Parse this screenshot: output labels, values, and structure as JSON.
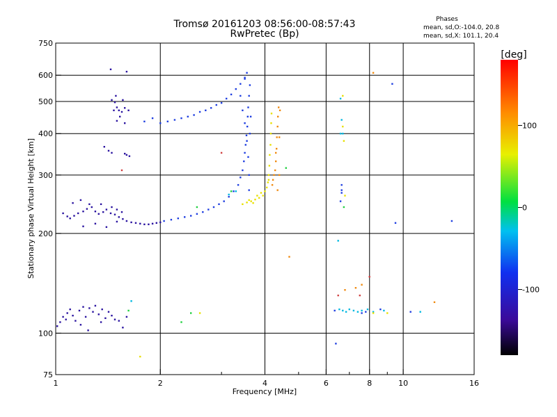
{
  "chart_data": {
    "type": "scatter",
    "title": "Tromsø 20161203 08:56:00-08:57:43",
    "subtitle": "RwPretec (Bp)",
    "xlabel": "Frequency [MHz]",
    "ylabel": "Stationary phase Virtual Height [km]",
    "x_scale": "log",
    "y_scale": "log",
    "xlim": [
      1,
      16
    ],
    "ylim": [
      75,
      750
    ],
    "x_ticks": [
      1,
      2,
      4,
      6,
      8,
      10,
      16
    ],
    "y_ticks": [
      75,
      100,
      200,
      300,
      400,
      500,
      600,
      750
    ],
    "grid": true,
    "legend": {
      "title": "Phases",
      "lines": [
        "mean, sd,O:-104.0, 20.8",
        "mean, sd,X: 101.1, 20.4"
      ]
    },
    "colorbar": {
      "label": "[deg]",
      "range": [
        -180,
        180
      ],
      "ticks": [
        100,
        0,
        -100
      ]
    },
    "series": [
      {
        "color": "#2a13a0",
        "points": [
          [
            1.01,
            105
          ],
          [
            1.03,
            108
          ],
          [
            1.05,
            112
          ],
          [
            1.07,
            110
          ],
          [
            1.08,
            115
          ],
          [
            1.1,
            118
          ],
          [
            1.12,
            113
          ],
          [
            1.14,
            109
          ],
          [
            1.17,
            117
          ],
          [
            1.2,
            120
          ],
          [
            1.22,
            112
          ],
          [
            1.25,
            119
          ],
          [
            1.28,
            116
          ],
          [
            1.3,
            121
          ],
          [
            1.33,
            114
          ],
          [
            1.36,
            118
          ],
          [
            1.39,
            111
          ],
          [
            1.42,
            116
          ],
          [
            1.45,
            113
          ],
          [
            1.48,
            110
          ],
          [
            1.52,
            109
          ],
          [
            1.56,
            104
          ],
          [
            1.6,
            112
          ],
          [
            1.18,
            106
          ],
          [
            1.24,
            102
          ],
          [
            1.35,
            108
          ],
          [
            1.05,
            230
          ],
          [
            1.08,
            225
          ],
          [
            1.1,
            222
          ],
          [
            1.13,
            226
          ],
          [
            1.16,
            230
          ],
          [
            1.2,
            233
          ],
          [
            1.23,
            237
          ],
          [
            1.27,
            240
          ],
          [
            1.3,
            233
          ],
          [
            1.33,
            229
          ],
          [
            1.37,
            232
          ],
          [
            1.4,
            236
          ],
          [
            1.44,
            230
          ],
          [
            1.48,
            228
          ],
          [
            1.52,
            224
          ],
          [
            1.56,
            221
          ],
          [
            1.6,
            218
          ],
          [
            1.65,
            216
          ],
          [
            1.7,
            215
          ],
          [
            1.75,
            214
          ],
          [
            1.8,
            213
          ],
          [
            1.85,
            213
          ],
          [
            1.9,
            214
          ],
          [
            1.95,
            215
          ],
          [
            2.0,
            216
          ],
          [
            1.12,
            247
          ],
          [
            1.18,
            252
          ],
          [
            1.25,
            245
          ],
          [
            1.35,
            245
          ],
          [
            1.45,
            240
          ],
          [
            1.5,
            236
          ],
          [
            1.2,
            210
          ],
          [
            1.3,
            214
          ],
          [
            1.4,
            209
          ],
          [
            1.5,
            217
          ],
          [
            1.55,
            232
          ],
          [
            1.45,
            505
          ],
          [
            1.48,
            497
          ],
          [
            1.5,
            480
          ],
          [
            1.52,
            470
          ],
          [
            1.55,
            465
          ],
          [
            1.58,
            478
          ],
          [
            1.62,
            470
          ],
          [
            1.49,
            520
          ],
          [
            1.56,
            505
          ],
          [
            1.47,
            470
          ],
          [
            1.53,
            450
          ],
          [
            1.58,
            430
          ],
          [
            1.5,
            437
          ],
          [
            1.6,
            345
          ],
          [
            1.63,
            342
          ],
          [
            1.58,
            348
          ],
          [
            1.38,
            365
          ],
          [
            1.42,
            355
          ],
          [
            1.45,
            350
          ],
          [
            1.44,
            625
          ],
          [
            1.6,
            615
          ]
        ]
      },
      {
        "color": "#1e3ee0",
        "points": [
          [
            2.05,
            218
          ],
          [
            2.15,
            220
          ],
          [
            2.25,
            222
          ],
          [
            2.35,
            224
          ],
          [
            2.45,
            226
          ],
          [
            2.55,
            229
          ],
          [
            2.65,
            232
          ],
          [
            2.75,
            236
          ],
          [
            2.85,
            240
          ],
          [
            2.95,
            245
          ],
          [
            3.05,
            250
          ],
          [
            3.15,
            258
          ],
          [
            3.25,
            268
          ],
          [
            3.35,
            280
          ],
          [
            3.4,
            295
          ],
          [
            3.45,
            310
          ],
          [
            3.48,
            330
          ],
          [
            3.5,
            350
          ],
          [
            3.52,
            370
          ],
          [
            3.54,
            395
          ],
          [
            3.56,
            420
          ],
          [
            3.57,
            450
          ],
          [
            3.58,
            480
          ],
          [
            3.6,
            520
          ],
          [
            3.62,
            560
          ],
          [
            3.45,
            470
          ],
          [
            3.5,
            430
          ],
          [
            3.55,
            380
          ],
          [
            3.58,
            340
          ],
          [
            3.6,
            300
          ],
          [
            3.6,
            270
          ],
          [
            3.62,
            400
          ],
          [
            3.64,
            450
          ],
          [
            3.5,
            590
          ],
          [
            3.55,
            610
          ],
          [
            3.4,
            520
          ],
          [
            2.2,
            440
          ],
          [
            2.3,
            445
          ],
          [
            2.4,
            450
          ],
          [
            2.5,
            455
          ],
          [
            2.6,
            465
          ],
          [
            2.7,
            470
          ],
          [
            2.8,
            478
          ],
          [
            2.9,
            488
          ],
          [
            3.0,
            495
          ],
          [
            3.1,
            510
          ],
          [
            3.2,
            525
          ],
          [
            3.3,
            545
          ],
          [
            3.4,
            565
          ],
          [
            3.5,
            585
          ],
          [
            2.0,
            430
          ],
          [
            2.1,
            435
          ],
          [
            1.9,
            445
          ],
          [
            1.8,
            435
          ],
          [
            6.65,
            280
          ],
          [
            6.65,
            270
          ],
          [
            6.65,
            265
          ],
          [
            6.6,
            250
          ],
          [
            9.3,
            565
          ],
          [
            9.5,
            215
          ],
          [
            13.8,
            218
          ],
          [
            8.6,
            118
          ],
          [
            7.8,
            116
          ],
          [
            7.6,
            115
          ],
          [
            6.35,
            117
          ],
          [
            10.5,
            116
          ],
          [
            6.4,
            93
          ]
        ]
      },
      {
        "color": "#00b8e0",
        "points": [
          [
            6.55,
            118
          ],
          [
            6.7,
            117
          ],
          [
            6.85,
            116
          ],
          [
            7.0,
            118
          ],
          [
            7.2,
            117
          ],
          [
            7.4,
            116
          ],
          [
            7.6,
            117
          ],
          [
            7.9,
            118
          ],
          [
            8.2,
            116
          ],
          [
            8.8,
            117
          ],
          [
            6.6,
            510
          ],
          [
            6.65,
            440
          ],
          [
            6.6,
            400
          ],
          [
            6.7,
            400
          ],
          [
            3.15,
            262
          ],
          [
            3.3,
            268
          ],
          [
            6.5,
            190
          ],
          [
            11.2,
            116
          ],
          [
            1.65,
            125
          ]
        ]
      },
      {
        "color": "#e8e000",
        "points": [
          [
            3.45,
            245
          ],
          [
            3.55,
            248
          ],
          [
            3.65,
            250
          ],
          [
            3.75,
            253
          ],
          [
            3.85,
            256
          ],
          [
            3.95,
            260
          ],
          [
            4.0,
            268
          ],
          [
            4.05,
            275
          ],
          [
            4.08,
            285
          ],
          [
            4.1,
            300
          ],
          [
            4.12,
            320
          ],
          [
            4.13,
            345
          ],
          [
            4.15,
            370
          ],
          [
            4.16,
            400
          ],
          [
            4.17,
            430
          ],
          [
            4.18,
            460
          ],
          [
            3.6,
            252
          ],
          [
            3.7,
            247
          ],
          [
            3.8,
            260
          ],
          [
            3.9,
            265
          ],
          [
            4.1,
            290
          ],
          [
            6.7,
            420
          ],
          [
            6.75,
            380
          ],
          [
            6.8,
            260
          ],
          [
            6.7,
            520
          ],
          [
            9.0,
            115
          ],
          [
            8.2,
            115
          ],
          [
            1.75,
            85
          ],
          [
            2.6,
            115
          ]
        ]
      },
      {
        "color": "#f08a10",
        "points": [
          [
            4.2,
            280
          ],
          [
            4.25,
            300
          ],
          [
            4.3,
            330
          ],
          [
            4.32,
            360
          ],
          [
            4.33,
            390
          ],
          [
            4.35,
            420
          ],
          [
            4.36,
            450
          ],
          [
            4.38,
            480
          ],
          [
            4.3,
            350
          ],
          [
            4.28,
            310
          ],
          [
            4.22,
            290
          ],
          [
            4.35,
            270
          ],
          [
            4.4,
            300
          ],
          [
            4.4,
            390
          ],
          [
            4.42,
            470
          ],
          [
            6.8,
            135
          ],
          [
            7.3,
            137
          ],
          [
            7.6,
            140
          ],
          [
            8.2,
            610
          ],
          [
            4.7,
            170
          ],
          [
            12.3,
            124
          ]
        ]
      },
      {
        "color": "#20d040",
        "points": [
          [
            2.55,
            240
          ],
          [
            3.2,
            268
          ],
          [
            4.6,
            315
          ],
          [
            6.75,
            240
          ],
          [
            2.3,
            108
          ],
          [
            2.45,
            115
          ],
          [
            1.62,
            117
          ]
        ]
      },
      {
        "color": "#d04040",
        "points": [
          [
            3.0,
            350
          ],
          [
            1.55,
            310
          ],
          [
            6.5,
            130
          ],
          [
            7.5,
            130
          ],
          [
            8.0,
            148
          ]
        ]
      }
    ]
  }
}
